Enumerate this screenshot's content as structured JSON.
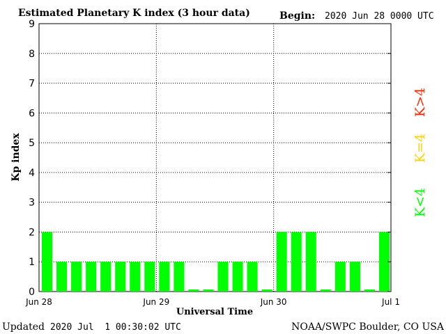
{
  "header": {
    "title": "Estimated Planetary K index (3 hour data)",
    "begin_label": "Begin:",
    "begin_value": "2020 Jun 28 0000 UTC"
  },
  "footer": {
    "updated_label": "Updated",
    "updated_value": "2020 Jul  1 00:30:02 UTC",
    "source": "NOAA/SWPC Boulder, CO USA"
  },
  "legend": {
    "high": {
      "text": "K>4",
      "color": "#ff2a00"
    },
    "mid": {
      "text": "K=4",
      "color": "#ffd200"
    },
    "low": {
      "text": "K<4",
      "color": "#00ff00"
    }
  },
  "chart_data": {
    "type": "bar",
    "title": "Estimated Planetary K index (3 hour data)",
    "xlabel": "Universal Time",
    "ylabel": "Kp index",
    "ylim": [
      0,
      9
    ],
    "yticks": [
      0,
      1,
      2,
      3,
      4,
      5,
      6,
      7,
      8,
      9
    ],
    "xticks": [
      "Jun 28",
      "Jun 29",
      "Jun 30",
      "Jul 1"
    ],
    "grid": "dotted, at each integer Kp and each day boundary",
    "bar_color": "#00ff00",
    "interval_hours": 3,
    "values": [
      2,
      1,
      1,
      1,
      1,
      1,
      1,
      1,
      1,
      1,
      0,
      0,
      1,
      1,
      1,
      0,
      2,
      2,
      2,
      0,
      1,
      1,
      0,
      2
    ]
  }
}
